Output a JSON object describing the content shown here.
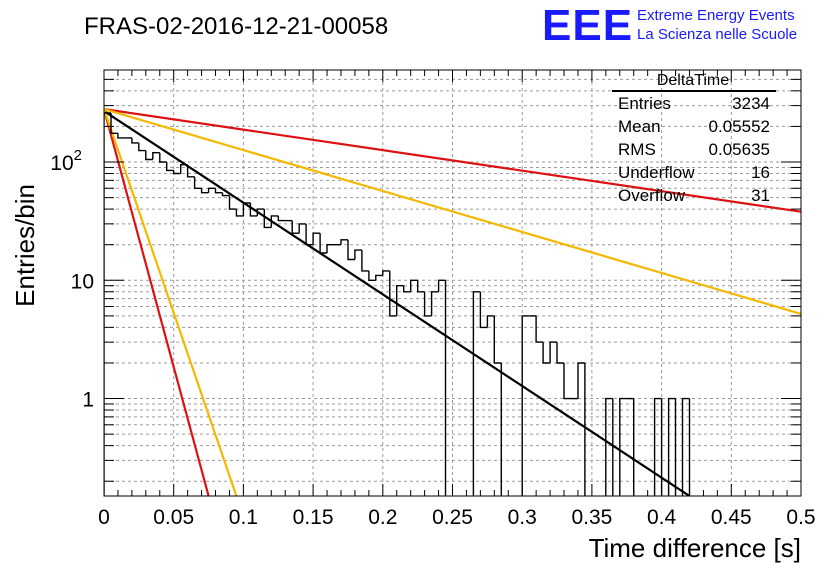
{
  "title": "FRAS-02-2016-12-21-00058",
  "logo": {
    "text": "EEE",
    "line1": "Extreme Energy Events",
    "line2": "La Scienza nelle Scuole",
    "color": "#1a1aff"
  },
  "stats": {
    "name": "DeltaTime",
    "rows": [
      {
        "label": "Entries",
        "value": "3234"
      },
      {
        "label": "Mean",
        "value": "0.05552"
      },
      {
        "label": "RMS",
        "value": "0.05635"
      },
      {
        "label": "Underflow",
        "value": "16"
      },
      {
        "label": "Overflow",
        "value": "31"
      }
    ]
  },
  "chart_data": {
    "type": "line",
    "title": "FRAS-02-2016-12-21-00058",
    "xlabel": "Time difference [s]",
    "ylabel": "Entries/bin",
    "xlim": [
      0,
      0.5
    ],
    "ylim": [
      0.15,
      600
    ],
    "yscale": "log",
    "grid": true,
    "x_ticks": [
      "0",
      "0.05",
      "0.1",
      "0.15",
      "0.2",
      "0.25",
      "0.3",
      "0.35",
      "0.4",
      "0.45",
      "0.5"
    ],
    "y_ticks": [
      {
        "value": 1,
        "label": "1"
      },
      {
        "value": 10,
        "label": "10"
      },
      {
        "value": 100,
        "label": "10",
        "exp": "2"
      }
    ],
    "histogram": {
      "bin_width": 0.005,
      "color": "#000000",
      "values": [
        260,
        175,
        160,
        160,
        145,
        125,
        105,
        120,
        100,
        85,
        80,
        95,
        75,
        60,
        55,
        60,
        55,
        52,
        40,
        35,
        45,
        35,
        40,
        28,
        35,
        32,
        32,
        25,
        30,
        20,
        25,
        17,
        20,
        20,
        22,
        15,
        18,
        12,
        10,
        11,
        12,
        5,
        9,
        8,
        10,
        8,
        5,
        8,
        10,
        0,
        0,
        0,
        0,
        8,
        4,
        5,
        2,
        0,
        0,
        0,
        5,
        5,
        3,
        2,
        3,
        2,
        1,
        1,
        2,
        0,
        0,
        0,
        1,
        0,
        1,
        1,
        0,
        0,
        0,
        1,
        0,
        1,
        0,
        1,
        0,
        0,
        0,
        0,
        0,
        0,
        0,
        0,
        0,
        0,
        0,
        0,
        0,
        0,
        0,
        0
      ]
    },
    "series": [
      {
        "color": "#000000",
        "x": [
          0,
          0.42
        ],
        "y": [
          270,
          0.15
        ]
      },
      {
        "color": "#dd1111",
        "x": [
          0,
          0.5
        ],
        "y": [
          280,
          38
        ]
      },
      {
        "color": "#f5b800",
        "x": [
          0,
          0.5
        ],
        "y": [
          280,
          5.2
        ]
      },
      {
        "color": "#dd1111",
        "x": [
          0,
          0.075
        ],
        "y": [
          280,
          0.15
        ]
      },
      {
        "color": "#f5b800",
        "x": [
          0,
          0.095
        ],
        "y": [
          280,
          0.15
        ]
      }
    ]
  }
}
